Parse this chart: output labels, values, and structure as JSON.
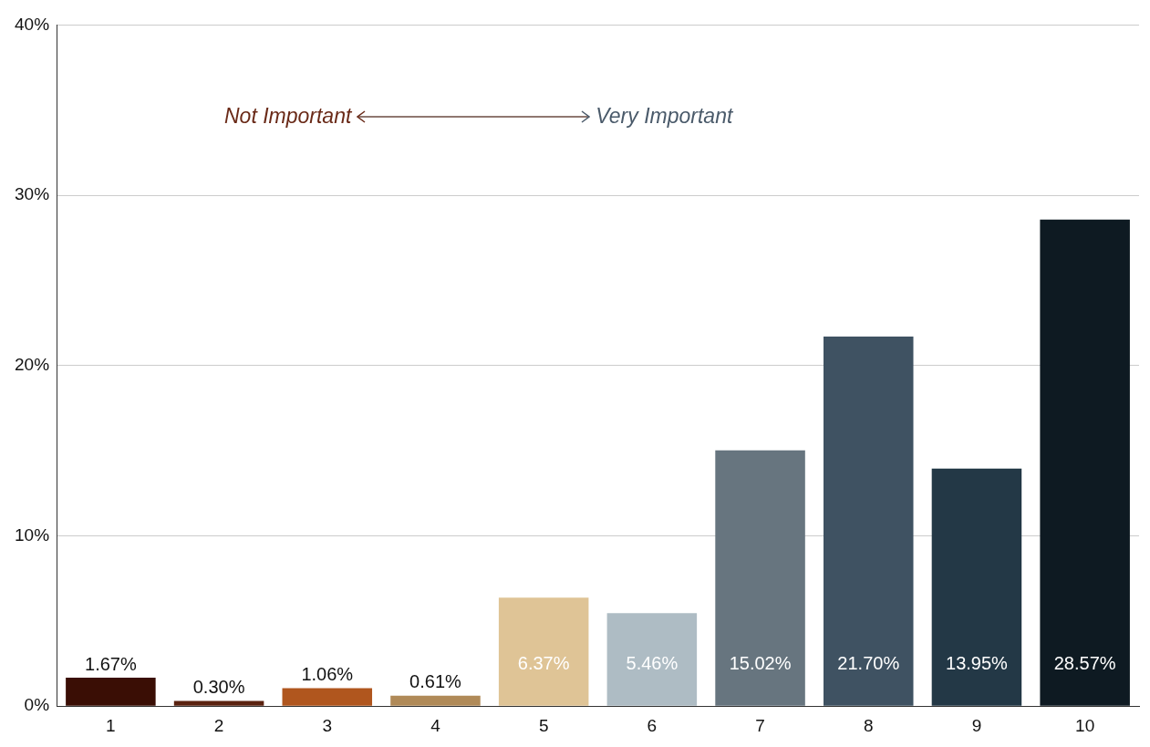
{
  "chart_data": {
    "type": "bar",
    "categories": [
      "1",
      "2",
      "3",
      "4",
      "5",
      "6",
      "7",
      "8",
      "9",
      "10"
    ],
    "values": [
      1.67,
      0.3,
      1.06,
      0.61,
      6.37,
      5.46,
      15.02,
      21.7,
      13.95,
      28.57
    ],
    "colors": [
      "#3a0e05",
      "#5a2210",
      "#b0561e",
      "#b08a58",
      "#dfc496",
      "#aebcc4",
      "#67757f",
      "#3f5262",
      "#233846",
      "#0e1a22"
    ],
    "ylim": [
      0,
      40
    ],
    "yticks": [
      {
        "value": 0,
        "label": "0%"
      },
      {
        "value": 10,
        "label": "10%"
      },
      {
        "value": 20,
        "label": "20%"
      },
      {
        "value": 30,
        "label": "30%"
      },
      {
        "value": 40,
        "label": "40%"
      }
    ],
    "value_labels": [
      "1.67%",
      "0.30%",
      "1.06%",
      "0.61%",
      "6.37%",
      "5.46%",
      "15.02%",
      "21.70%",
      "13.95%",
      "28.57%"
    ],
    "grid": "y",
    "annotations": [
      "Not Important",
      "Very Important"
    ]
  }
}
